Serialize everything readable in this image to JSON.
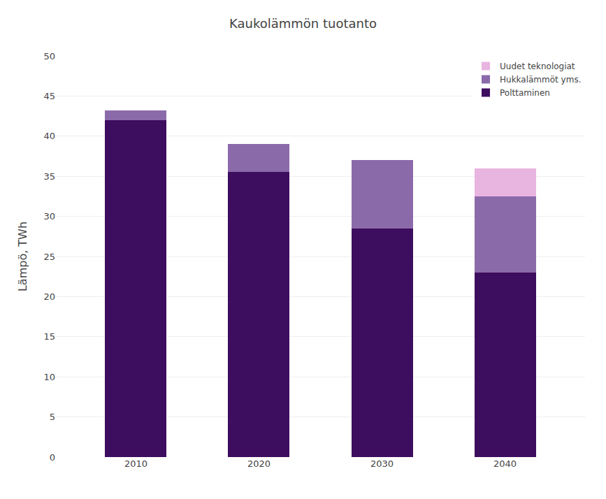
{
  "chart_data": {
    "type": "bar",
    "stacked": true,
    "title": "Kaukolämmön tuotanto",
    "ylabel": "Lämpö, TWh",
    "categories": [
      "2010",
      "2020",
      "2030",
      "2040"
    ],
    "series": [
      {
        "name": "Polttaminen",
        "color": "#3d0d5f",
        "values": [
          42.0,
          35.5,
          28.5,
          23.0
        ]
      },
      {
        "name": "Hukkalämmöt yms.",
        "color": "#8b6aaa",
        "values": [
          1.2,
          3.5,
          8.5,
          9.5
        ]
      },
      {
        "name": "Uudet teknologiat",
        "color": "#e8b4e0",
        "values": [
          0.0,
          0.0,
          0.0,
          3.5
        ]
      }
    ],
    "ylim": [
      0,
      50
    ],
    "yticks": [
      0,
      5,
      10,
      15,
      20,
      25,
      30,
      35,
      40,
      45,
      50
    ],
    "grid": true,
    "legend": "upper right"
  }
}
